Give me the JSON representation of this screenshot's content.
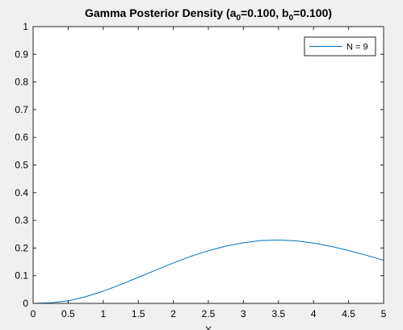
{
  "figure": {
    "background": "#f0f0f0",
    "axes_background": "#ffffff",
    "axis_color": "#262626",
    "line_color": "#0072bd"
  },
  "chart_data": {
    "type": "line",
    "title": {
      "prefix": "Gamma Posterior Density (a",
      "sub_a": "0",
      "mid": "=0.100, b",
      "sub_b": "0",
      "suffix": "=0.100)"
    },
    "xlabel": "X",
    "ylabel": "",
    "xlim": [
      0,
      5
    ],
    "ylim": [
      0,
      1
    ],
    "x_ticks": [
      "0",
      "0.5",
      "1",
      "1.5",
      "2",
      "2.5",
      "3",
      "3.5",
      "4",
      "4.5",
      "5"
    ],
    "y_ticks": [
      "0",
      "0.1",
      "0.2",
      "0.3",
      "0.4",
      "0.5",
      "0.6",
      "0.7",
      "0.8",
      "0.9",
      "1"
    ],
    "grid": false,
    "legend": {
      "position": "top-right",
      "entries": [
        "N = 9"
      ]
    },
    "series": [
      {
        "name": "N = 9",
        "x": [
          0,
          0.25,
          0.5,
          0.75,
          1,
          1.25,
          1.5,
          1.75,
          2,
          2.25,
          2.5,
          2.75,
          3,
          3.25,
          3.5,
          3.75,
          4,
          4.25,
          4.5,
          4.75,
          5
        ],
        "y": [
          0,
          0.002,
          0.009,
          0.024,
          0.044,
          0.068,
          0.094,
          0.12,
          0.146,
          0.17,
          0.19,
          0.207,
          0.219,
          0.227,
          0.229,
          0.226,
          0.218,
          0.206,
          0.191,
          0.174,
          0.156
        ]
      }
    ]
  }
}
